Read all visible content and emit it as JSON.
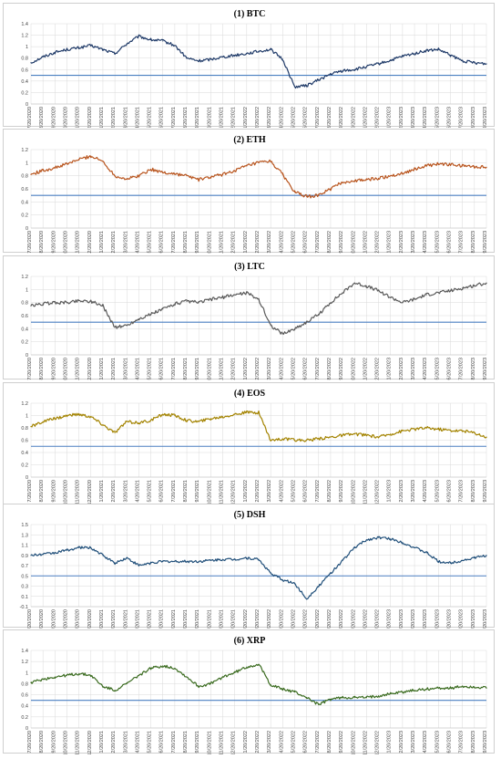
{
  "chart_data": [
    {
      "type": "line",
      "title": "(1) BTC",
      "color": "#1f3a68",
      "ylim": [
        0,
        1.4
      ],
      "yticks": [
        "0",
        "0.2",
        "0.4",
        "0.6",
        "0.8",
        "1",
        "1.2",
        "1.4"
      ],
      "threshold": 0.5,
      "x_dates": [
        "7/20/2020",
        "8/20/2020",
        "9/20/2020",
        "10/20/2020",
        "11/20/2020",
        "12/20/2020",
        "1/20/2021",
        "2/20/2021",
        "3/20/2021",
        "4/20/2021",
        "5/20/2021",
        "6/20/2021",
        "7/20/2021",
        "8/20/2021",
        "9/20/2021",
        "10/20/2021",
        "11/20/2021",
        "12/20/2021",
        "1/20/2022",
        "2/20/2022",
        "3/20/2022",
        "4/20/2022",
        "5/20/2022",
        "6/20/2022",
        "7/20/2022",
        "8/20/2022",
        "9/20/2022",
        "10/20/2022",
        "11/20/2022",
        "12/20/2022",
        "1/20/2023",
        "2/20/2023",
        "3/20/2023",
        "4/20/2023",
        "5/20/2023",
        "6/20/2023",
        "7/20/2023",
        "8/20/2023",
        "9/20/2023"
      ],
      "series": [
        {
          "values": [
            0.72,
            0.82,
            0.9,
            0.95,
            0.98,
            1.02,
            0.95,
            0.88,
            1.05,
            1.18,
            1.12,
            1.1,
            1.02,
            0.8,
            0.75,
            0.78,
            0.82,
            0.85,
            0.88,
            0.92,
            0.95,
            0.78,
            0.3,
            0.32,
            0.42,
            0.52,
            0.58,
            0.6,
            0.65,
            0.7,
            0.76,
            0.83,
            0.88,
            0.93,
            0.95,
            0.85,
            0.75,
            0.72,
            0.7
          ]
        }
      ]
    },
    {
      "type": "line",
      "title": "(2) ETH",
      "color": "#b8541d",
      "ylim": [
        0,
        1.2
      ],
      "yticks": [
        "0",
        "0.2",
        "0.4",
        "0.6",
        "0.8",
        "1",
        "1.2"
      ],
      "threshold": 0.5,
      "x_dates": [
        "7/20/2020",
        "8/20/2020",
        "9/20/2020",
        "10/20/2020",
        "11/20/2020",
        "12/20/2020",
        "1/20/2021",
        "2/20/2021",
        "3/20/2021",
        "4/20/2021",
        "5/20/2021",
        "6/20/2021",
        "7/20/2021",
        "8/20/2021",
        "9/20/2021",
        "10/20/2021",
        "11/20/2021",
        "12/20/2021",
        "1/20/2022",
        "2/20/2022",
        "3/20/2022",
        "4/20/2022",
        "5/20/2022",
        "6/20/2022",
        "7/20/2022",
        "8/20/2022",
        "9/20/2022",
        "10/20/2022",
        "11/20/2022",
        "12/20/2022",
        "1/20/2023",
        "2/20/2023",
        "3/20/2023",
        "4/20/2023",
        "5/20/2023",
        "6/20/2023",
        "7/20/2023",
        "8/20/2023",
        "9/20/2023"
      ],
      "series": [
        {
          "values": [
            0.82,
            0.88,
            0.92,
            0.98,
            1.05,
            1.1,
            1.02,
            0.8,
            0.75,
            0.8,
            0.9,
            0.85,
            0.83,
            0.8,
            0.74,
            0.78,
            0.82,
            0.88,
            0.95,
            1.0,
            1.02,
            0.82,
            0.55,
            0.48,
            0.5,
            0.6,
            0.7,
            0.72,
            0.74,
            0.76,
            0.8,
            0.84,
            0.9,
            0.95,
            0.98,
            0.97,
            0.95,
            0.94,
            0.93
          ]
        }
      ]
    },
    {
      "type": "line",
      "title": "(3) LTC",
      "color": "#595959",
      "ylim": [
        0,
        1.2
      ],
      "yticks": [
        "0",
        "0.2",
        "0.4",
        "0.6",
        "0.8",
        "1",
        "1.2"
      ],
      "threshold": 0.5,
      "x_dates": [
        "7/20/2020",
        "8/20/2020",
        "9/20/2020",
        "10/20/2020",
        "11/20/2020",
        "12/20/2020",
        "1/20/2021",
        "2/20/2021",
        "3/20/2021",
        "4/20/2021",
        "5/20/2021",
        "6/20/2021",
        "7/20/2021",
        "8/20/2021",
        "9/20/2021",
        "10/20/2021",
        "11/20/2021",
        "12/20/2021",
        "1/20/2022",
        "2/20/2022",
        "3/20/2022",
        "4/20/2022",
        "5/20/2022",
        "6/20/2022",
        "7/20/2022",
        "8/20/2022",
        "9/20/2022",
        "10/20/2022",
        "11/20/2022",
        "12/20/2022",
        "1/20/2023",
        "2/20/2023",
        "3/20/2023",
        "4/20/2023",
        "5/20/2023",
        "6/20/2023",
        "7/20/2023",
        "8/20/2023",
        "9/20/2023"
      ],
      "series": [
        {
          "values": [
            0.75,
            0.78,
            0.8,
            0.8,
            0.83,
            0.82,
            0.75,
            0.42,
            0.45,
            0.55,
            0.62,
            0.7,
            0.78,
            0.82,
            0.8,
            0.85,
            0.88,
            0.92,
            0.95,
            0.85,
            0.45,
            0.32,
            0.4,
            0.5,
            0.62,
            0.8,
            0.95,
            1.1,
            1.05,
            0.98,
            0.88,
            0.8,
            0.85,
            0.92,
            0.95,
            0.98,
            1.02,
            1.06,
            1.1
          ]
        }
      ]
    },
    {
      "type": "line",
      "title": "(4) EOS",
      "color": "#a38300",
      "ylim": [
        0,
        1.2
      ],
      "yticks": [
        "0",
        "0.2",
        "0.4",
        "0.6",
        "0.8",
        "1",
        "1.2"
      ],
      "threshold": 0.5,
      "x_dates": [
        "7/20/2020",
        "8/20/2020",
        "9/20/2020",
        "10/20/2020",
        "11/20/2020",
        "12/20/2020",
        "1/20/2021",
        "2/20/2021",
        "3/20/2021",
        "4/20/2021",
        "5/20/2021",
        "6/20/2021",
        "7/20/2021",
        "8/20/2021",
        "9/20/2021",
        "10/20/2021",
        "11/20/2021",
        "12/20/2021",
        "1/20/2022",
        "2/20/2022",
        "3/20/2022",
        "4/20/2022",
        "5/20/2022",
        "6/20/2022",
        "7/20/2022",
        "8/20/2022",
        "9/20/2022",
        "10/20/2022",
        "11/20/2022",
        "12/20/2022",
        "1/20/2023",
        "2/20/2023",
        "3/20/2023",
        "4/20/2023",
        "5/20/2023",
        "6/20/2023",
        "7/20/2023",
        "8/20/2023",
        "9/20/2023"
      ],
      "series": [
        {
          "values": [
            0.82,
            0.9,
            0.95,
            1.0,
            1.02,
            0.98,
            0.85,
            0.72,
            0.9,
            0.88,
            0.92,
            1.02,
            1.0,
            0.92,
            0.9,
            0.95,
            0.98,
            1.02,
            1.05,
            1.05,
            0.6,
            0.62,
            0.6,
            0.6,
            0.62,
            0.65,
            0.68,
            0.7,
            0.68,
            0.65,
            0.7,
            0.75,
            0.78,
            0.8,
            0.78,
            0.76,
            0.75,
            0.72,
            0.65
          ]
        }
      ]
    },
    {
      "type": "line",
      "title": "(5) DSH",
      "color": "#1f4e79",
      "ylim": [
        -0.1,
        1.5
      ],
      "yticks": [
        "-0.1",
        "0.1",
        "0.3",
        "0.5",
        "0.7",
        "0.9",
        "1.1",
        "1.3",
        "1.5"
      ],
      "threshold": 0.5,
      "x_dates": [
        "7/20/2020",
        "8/20/2020",
        "9/20/2020",
        "10/20/2020",
        "11/20/2020",
        "12/20/2020",
        "1/20/2021",
        "2/20/2021",
        "3/20/2021",
        "4/20/2021",
        "5/20/2021",
        "6/20/2021",
        "7/20/2021",
        "8/20/2021",
        "9/20/2021",
        "10/20/2021",
        "11/20/2021",
        "12/20/2021",
        "1/20/2022",
        "2/20/2022",
        "3/20/2022",
        "4/20/2022",
        "5/20/2022",
        "6/20/2022",
        "7/20/2022",
        "8/20/2022",
        "9/20/2022",
        "10/20/2022",
        "11/20/2022",
        "12/20/2022",
        "1/20/2023",
        "2/20/2023",
        "3/20/2023",
        "4/20/2023",
        "5/20/2023",
        "6/20/2023",
        "7/20/2023",
        "8/20/2023",
        "9/20/2023"
      ],
      "series": [
        {
          "values": [
            0.9,
            0.92,
            0.95,
            1.0,
            1.05,
            1.05,
            0.9,
            0.75,
            0.85,
            0.7,
            0.75,
            0.78,
            0.78,
            0.78,
            0.78,
            0.8,
            0.82,
            0.82,
            0.85,
            0.82,
            0.55,
            0.42,
            0.35,
            0.05,
            0.3,
            0.55,
            0.8,
            1.05,
            1.2,
            1.25,
            1.22,
            1.15,
            1.05,
            0.95,
            0.78,
            0.75,
            0.8,
            0.85,
            0.9
          ]
        }
      ]
    },
    {
      "type": "line",
      "title": "(6) XRP",
      "color": "#3a6b1f",
      "ylim": [
        0,
        1.4
      ],
      "yticks": [
        "0",
        "0.2",
        "0.4",
        "0.6",
        "0.8",
        "1",
        "1.2",
        "1.4"
      ],
      "threshold": 0.5,
      "x_dates": [
        "7/20/2020",
        "8/20/2020",
        "9/20/2020",
        "10/20/2020",
        "11/20/2020",
        "12/20/2020",
        "1/20/2021",
        "2/20/2021",
        "3/20/2021",
        "4/20/2021",
        "5/20/2021",
        "6/20/2021",
        "7/20/2021",
        "8/20/2021",
        "9/20/2021",
        "10/20/2021",
        "11/20/2021",
        "12/20/2021",
        "1/20/2022",
        "2/20/2022",
        "3/20/2022",
        "4/20/2022",
        "5/20/2022",
        "6/20/2022",
        "7/20/2022",
        "8/20/2022",
        "9/20/2022",
        "10/20/2022",
        "11/20/2022",
        "12/20/2022",
        "1/20/2023",
        "2/20/2023",
        "3/20/2023",
        "4/20/2023",
        "5/20/2023",
        "6/20/2023",
        "7/20/2023",
        "8/20/2023",
        "9/20/2023"
      ],
      "series": [
        {
          "values": [
            0.82,
            0.88,
            0.92,
            0.95,
            0.98,
            0.95,
            0.75,
            0.68,
            0.8,
            0.95,
            1.08,
            1.12,
            1.08,
            0.92,
            0.75,
            0.8,
            0.92,
            1.0,
            1.1,
            1.15,
            0.78,
            0.7,
            0.65,
            0.55,
            0.42,
            0.52,
            0.55,
            0.55,
            0.55,
            0.58,
            0.62,
            0.65,
            0.68,
            0.7,
            0.72,
            0.72,
            0.75,
            0.74,
            0.72
          ]
        }
      ]
    }
  ]
}
